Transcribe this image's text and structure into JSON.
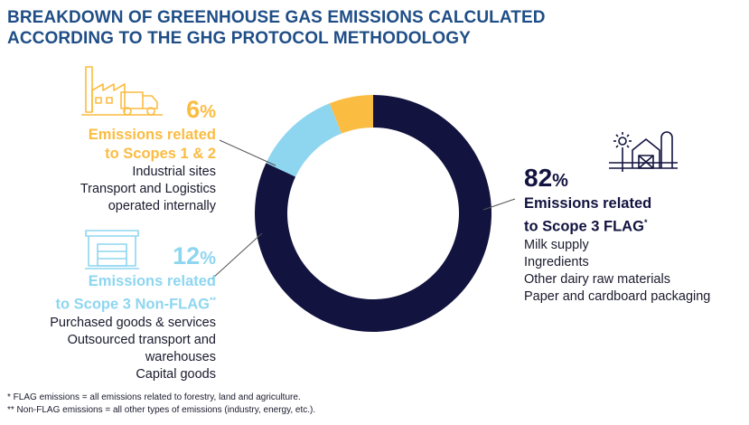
{
  "title_line1": "BREAKDOWN OF GREENHOUSE GAS EMISSIONS CALCULATED",
  "title_line2": "ACCORDING TO THE GHG PROTOCOL METHODOLOGY",
  "colors": {
    "title": "#1f4e86",
    "flag": "#12133f",
    "nonflag": "#8ed6f0",
    "scopes12": "#fbbc42"
  },
  "segments": {
    "scopes12": {
      "pct_number": "6",
      "pct_unit": "%",
      "label1": "Emissions related",
      "label2": "to Scopes 1 & 2",
      "marker": "",
      "items": [
        "Industrial sites",
        "Transport and Logistics",
        "operated internally"
      ],
      "icon": "factory-truck-icon"
    },
    "nonflag": {
      "pct_number": "12",
      "pct_unit": "%",
      "label1": "Emissions related",
      "label2": "to Scope 3 Non-FLAG",
      "marker": "**",
      "items": [
        "Purchased goods & services",
        "Outsourced transport and",
        "warehouses",
        "Capital goods"
      ],
      "icon": "warehouse-icon"
    },
    "flag": {
      "pct_number": "82",
      "pct_unit": "%",
      "label1": "Emissions related",
      "label2": "to Scope 3 FLAG",
      "marker": "*",
      "items": [
        "Milk supply",
        "Ingredients",
        "Other dairy raw materials",
        "Paper and cardboard packaging"
      ],
      "icon": "farm-icon"
    }
  },
  "footnotes": {
    "flag": "* FLAG emissions = all emissions related to forestry, land and agriculture.",
    "nonflag": "** Non-FLAG emissions = all other types of emissions (industry, energy, etc.)."
  },
  "chart_data": {
    "type": "pie",
    "style": "donut",
    "start": "top, clockwise",
    "categories": [
      "Scope 3 FLAG",
      "Scope 3 Non-FLAG",
      "Scopes 1 & 2"
    ],
    "values": [
      82,
      12,
      6
    ],
    "colors": [
      "#12133f",
      "#8ed6f0",
      "#fbbc42"
    ]
  }
}
